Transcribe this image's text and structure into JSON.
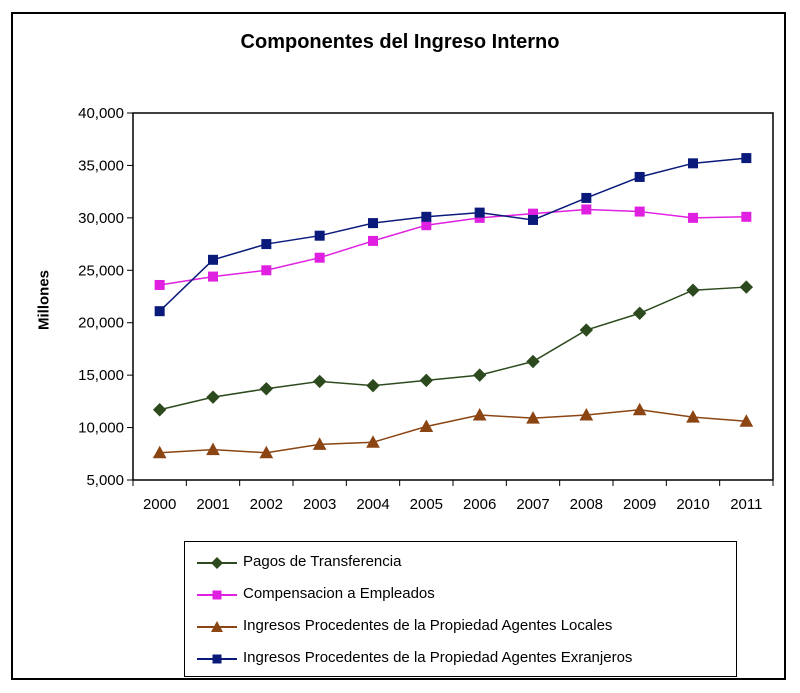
{
  "chart_data": {
    "type": "line",
    "title": "Componentes del Ingreso Interno",
    "xlabel": "",
    "ylabel": "Millones",
    "categories": [
      "2000",
      "2001",
      "2002",
      "2003",
      "2004",
      "2005",
      "2006",
      "2007",
      "2008",
      "2009",
      "2010",
      "2011"
    ],
    "ylim": [
      5000,
      40000
    ],
    "yticks": [
      "5,000",
      "10,000",
      "15,000",
      "20,000",
      "25,000",
      "30,000",
      "35,000",
      "40,000"
    ],
    "grid": false,
    "legend_position": "bottom",
    "series": [
      {
        "name": "Pagos de Transferencia",
        "color": "#2d4a1e",
        "marker": "diamond",
        "values": [
          11700,
          12900,
          13700,
          14400,
          14000,
          14500,
          15000,
          16300,
          19300,
          20900,
          23100,
          23400
        ]
      },
      {
        "name": "Compensacion a Empleados",
        "color": "#e020e0",
        "marker": "square",
        "values": [
          23600,
          24400,
          25000,
          26200,
          27800,
          29300,
          30000,
          30400,
          30800,
          30600,
          30000,
          30100
        ]
      },
      {
        "name": "Ingresos Procedentes de la Propiedad Agentes Locales",
        "color": "#8b4513",
        "marker": "triangle",
        "values": [
          7600,
          7900,
          7600,
          8400,
          8600,
          10100,
          11200,
          10900,
          11200,
          11700,
          11000,
          10600
        ]
      },
      {
        "name": "Ingresos Procedentes de la Propiedad Agentes Exranjeros",
        "color": "#0a1a7a",
        "marker": "square",
        "values": [
          21100,
          26000,
          27500,
          28300,
          29500,
          30100,
          30500,
          29800,
          31900,
          33900,
          35200,
          35700
        ]
      }
    ]
  }
}
